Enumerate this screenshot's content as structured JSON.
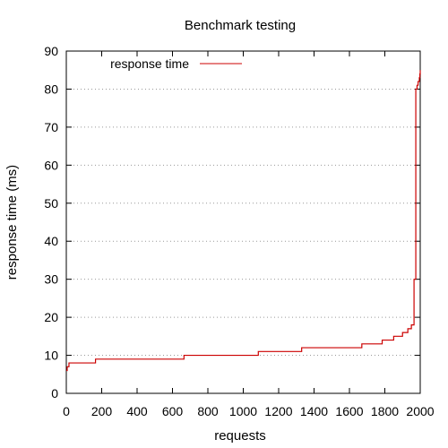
{
  "chart_data": {
    "type": "line",
    "title": "Benchmark testing",
    "xlabel": "requests",
    "ylabel": "response time (ms)",
    "xlim": [
      0,
      2000
    ],
    "ylim": [
      0,
      90
    ],
    "xticks": [
      0,
      200,
      400,
      600,
      800,
      1000,
      1200,
      1400,
      1600,
      1800,
      2000
    ],
    "yticks": [
      0,
      10,
      20,
      30,
      40,
      50,
      60,
      70,
      80,
      90
    ],
    "grid": "horizontal dotted",
    "legend_position": "top-left",
    "step": true,
    "series": [
      {
        "name": "response time",
        "color": "#cc0000",
        "x": [
          0,
          5,
          15,
          165,
          665,
          1085,
          1330,
          1670,
          1785,
          1850,
          1900,
          1930,
          1950,
          1965,
          1975,
          1982,
          1988,
          1995,
          1998,
          2000
        ],
        "y": [
          6,
          7,
          8,
          9,
          10,
          11,
          12,
          13,
          14,
          15,
          16,
          17,
          18,
          30,
          80,
          81,
          82,
          83,
          84,
          85
        ]
      }
    ]
  }
}
